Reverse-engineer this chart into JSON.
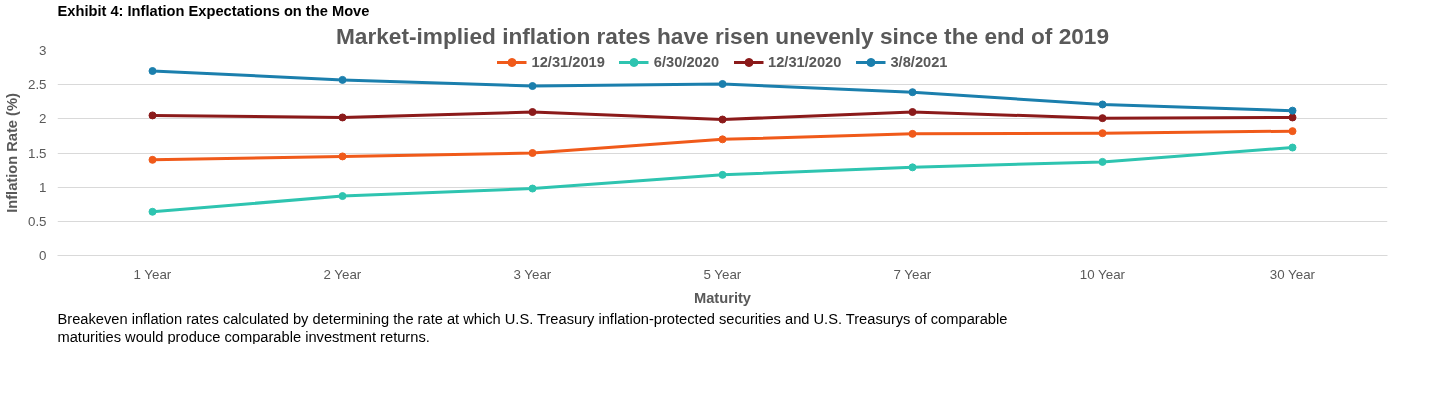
{
  "chart_data": {
    "type": "line",
    "title": "Market-implied inflation rates have risen unevenly since the end of 2019",
    "xlabel": "Maturity",
    "ylabel": "Inflation Rate (%)",
    "categories": [
      "1 Year",
      "2 Year",
      "3 Year",
      "5 Year",
      "7 Year",
      "10 Year",
      "30 Year"
    ],
    "series": [
      {
        "name": "12/31/2019",
        "color": "#f05a1a",
        "values": [
          1.4,
          1.45,
          1.5,
          1.7,
          1.78,
          1.79,
          1.82
        ]
      },
      {
        "name": "6/30/2020",
        "color": "#2ec4b0",
        "values": [
          0.64,
          0.87,
          0.98,
          1.18,
          1.29,
          1.37,
          1.58
        ]
      },
      {
        "name": "12/31/2020",
        "color": "#8b1a1a",
        "values": [
          2.05,
          2.02,
          2.1,
          1.99,
          2.1,
          2.01,
          2.02
        ]
      },
      {
        "name": "3/8/2021",
        "color": "#1b7fad",
        "values": [
          2.7,
          2.57,
          2.48,
          2.51,
          2.39,
          2.21,
          2.12
        ]
      }
    ],
    "ylim": [
      0,
      3
    ],
    "yticks": [
      0,
      0.5,
      1,
      1.5,
      2,
      2.5,
      3
    ],
    "grid": "y",
    "legend": "top",
    "marker": "circle",
    "line_style": "solid",
    "annotations": [
      "Exhibit 4: Inflation Expectations on the Move",
      "Breakeven inflation rates calculated by determining the rate at which U.S. Treasury inflation-protected securities and U.S. Treasurys of comparable maturities would produce comparable investment returns."
    ]
  }
}
